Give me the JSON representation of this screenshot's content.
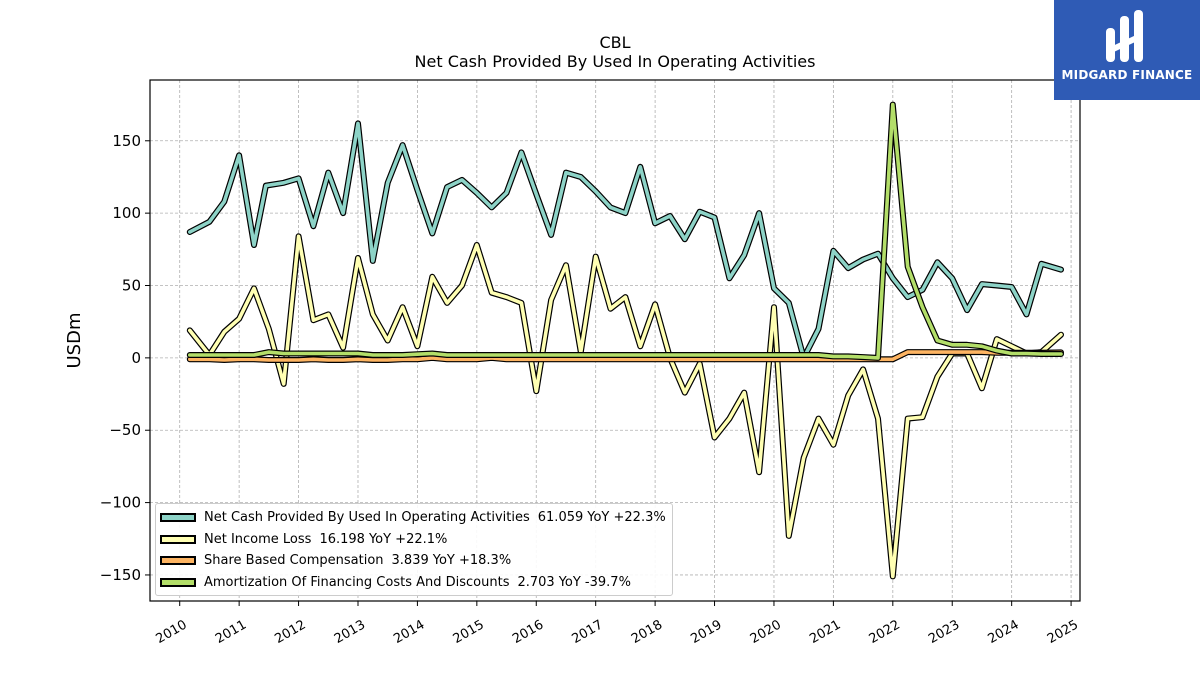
{
  "header": {
    "title": "CBL",
    "subtitle": "Net Cash Provided By Used In Operating Activities"
  },
  "logo": {
    "text": "MIDGARD FINANCE",
    "color": "#2f5bb5"
  },
  "chart_data": {
    "type": "line",
    "title": "CBL",
    "subtitle": "Net Cash Provided By Used In Operating Activities",
    "xlabel": "",
    "ylabel": "USDm",
    "xlim": [
      2009.5,
      2025.15
    ],
    "ylim": [
      -168,
      192
    ],
    "x_ticks": [
      2010,
      2011,
      2012,
      2013,
      2014,
      2015,
      2016,
      2017,
      2018,
      2019,
      2020,
      2021,
      2022,
      2023,
      2024,
      2025
    ],
    "y_ticks": [
      -150,
      -100,
      -50,
      0,
      50,
      100,
      150
    ],
    "y_tick_labels": [
      "−150",
      "−100",
      "−50",
      "0",
      "50",
      "100",
      "150"
    ],
    "grid": true,
    "legend_position": "lower-left",
    "series": [
      {
        "name": "Net Cash Provided By Used In Operating Activities",
        "value_label": "61.059",
        "yoy_label": "YoY +22.3%",
        "color": "#8dd3c7",
        "points": [
          [
            2010.17,
            87
          ],
          [
            2010.5,
            94
          ],
          [
            2010.75,
            108
          ],
          [
            2011.0,
            140
          ],
          [
            2011.25,
            78
          ],
          [
            2011.45,
            119
          ],
          [
            2011.75,
            121
          ],
          [
            2012.0,
            124
          ],
          [
            2012.25,
            91
          ],
          [
            2012.5,
            128
          ],
          [
            2012.75,
            100
          ],
          [
            2013.0,
            162
          ],
          [
            2013.25,
            67
          ],
          [
            2013.5,
            121
          ],
          [
            2013.75,
            147
          ],
          [
            2014.0,
            116
          ],
          [
            2014.25,
            86
          ],
          [
            2014.5,
            118
          ],
          [
            2014.75,
            123
          ],
          [
            2015.0,
            114
          ],
          [
            2015.25,
            104
          ],
          [
            2015.5,
            114
          ],
          [
            2015.75,
            142
          ],
          [
            2016.0,
            113
          ],
          [
            2016.25,
            85
          ],
          [
            2016.5,
            128
          ],
          [
            2016.75,
            125
          ],
          [
            2017.0,
            115
          ],
          [
            2017.25,
            104
          ],
          [
            2017.5,
            100
          ],
          [
            2017.75,
            132
          ],
          [
            2018.0,
            93
          ],
          [
            2018.25,
            98
          ],
          [
            2018.5,
            82
          ],
          [
            2018.75,
            101
          ],
          [
            2019.0,
            97
          ],
          [
            2019.25,
            55
          ],
          [
            2019.5,
            71
          ],
          [
            2019.75,
            100
          ],
          [
            2020.0,
            48
          ],
          [
            2020.25,
            38
          ],
          [
            2020.5,
            0
          ],
          [
            2020.75,
            20
          ],
          [
            2021.0,
            74
          ],
          [
            2021.25,
            62
          ],
          [
            2021.5,
            68
          ],
          [
            2021.75,
            72
          ],
          [
            2022.0,
            55
          ],
          [
            2022.25,
            42
          ],
          [
            2022.5,
            47
          ],
          [
            2022.75,
            66
          ],
          [
            2023.0,
            55
          ],
          [
            2023.25,
            33
          ],
          [
            2023.5,
            51
          ],
          [
            2023.75,
            50
          ],
          [
            2024.0,
            49
          ],
          [
            2024.25,
            30
          ],
          [
            2024.5,
            65
          ],
          [
            2024.83,
            61
          ]
        ]
      },
      {
        "name": "Net Income Loss",
        "value_label": "16.198",
        "yoy_label": "YoY +22.1%",
        "color": "#ffffb3",
        "points": [
          [
            2010.17,
            19
          ],
          [
            2010.5,
            2
          ],
          [
            2010.75,
            18
          ],
          [
            2011.0,
            27
          ],
          [
            2011.25,
            48
          ],
          [
            2011.5,
            20
          ],
          [
            2011.75,
            -18
          ],
          [
            2012.0,
            84
          ],
          [
            2012.25,
            26
          ],
          [
            2012.5,
            30
          ],
          [
            2012.75,
            7
          ],
          [
            2013.0,
            69
          ],
          [
            2013.25,
            30
          ],
          [
            2013.5,
            12
          ],
          [
            2013.75,
            35
          ],
          [
            2014.0,
            8
          ],
          [
            2014.25,
            56
          ],
          [
            2014.5,
            38
          ],
          [
            2014.75,
            50
          ],
          [
            2015.0,
            78
          ],
          [
            2015.25,
            45
          ],
          [
            2015.5,
            42
          ],
          [
            2015.75,
            38
          ],
          [
            2016.0,
            -23
          ],
          [
            2016.25,
            40
          ],
          [
            2016.5,
            64
          ],
          [
            2016.75,
            4
          ],
          [
            2017.0,
            70
          ],
          [
            2017.25,
            34
          ],
          [
            2017.5,
            42
          ],
          [
            2017.75,
            8
          ],
          [
            2018.0,
            37
          ],
          [
            2018.25,
            0
          ],
          [
            2018.5,
            -24
          ],
          [
            2018.75,
            -4
          ],
          [
            2019.0,
            -55
          ],
          [
            2019.25,
            -42
          ],
          [
            2019.5,
            -24
          ],
          [
            2019.75,
            -79
          ],
          [
            2020.0,
            35
          ],
          [
            2020.25,
            -123
          ],
          [
            2020.5,
            -69
          ],
          [
            2020.75,
            -42
          ],
          [
            2021.0,
            -60
          ],
          [
            2021.25,
            -26
          ],
          [
            2021.5,
            -8
          ],
          [
            2021.75,
            -42
          ],
          [
            2022.0,
            -151
          ],
          [
            2022.25,
            -42
          ],
          [
            2022.5,
            -41
          ],
          [
            2022.75,
            -13
          ],
          [
            2023.0,
            3
          ],
          [
            2023.25,
            3
          ],
          [
            2023.5,
            -21
          ],
          [
            2023.75,
            13
          ],
          [
            2024.0,
            8
          ],
          [
            2024.25,
            3
          ],
          [
            2024.5,
            4
          ],
          [
            2024.83,
            16
          ]
        ]
      },
      {
        "name": "Share Based Compensation",
        "value_label": "3.839",
        "yoy_label": "YoY +18.3%",
        "color": "#fdb462",
        "points": [
          [
            2010.17,
            -1
          ],
          [
            2010.5,
            -1
          ],
          [
            2010.75,
            -1.5
          ],
          [
            2011.0,
            -1
          ],
          [
            2011.25,
            -1
          ],
          [
            2011.5,
            -1.5
          ],
          [
            2011.75,
            -1.5
          ],
          [
            2012.0,
            -1.5
          ],
          [
            2012.25,
            -1
          ],
          [
            2012.5,
            -1.5
          ],
          [
            2012.75,
            -1.5
          ],
          [
            2013.0,
            -1
          ],
          [
            2013.25,
            -1.5
          ],
          [
            2013.5,
            -1.5
          ],
          [
            2013.75,
            -1
          ],
          [
            2014.0,
            -1
          ],
          [
            2014.25,
            0
          ],
          [
            2014.5,
            -1
          ],
          [
            2014.75,
            -1
          ],
          [
            2015.0,
            -1
          ],
          [
            2015.25,
            0
          ],
          [
            2015.5,
            -1
          ],
          [
            2015.75,
            -1
          ],
          [
            2016.0,
            -1
          ],
          [
            2016.25,
            -1
          ],
          [
            2016.5,
            -1
          ],
          [
            2016.75,
            -1
          ],
          [
            2017.0,
            -1
          ],
          [
            2017.25,
            -1
          ],
          [
            2017.5,
            -1
          ],
          [
            2017.75,
            -1
          ],
          [
            2018.0,
            -1
          ],
          [
            2018.25,
            -1
          ],
          [
            2018.5,
            -1
          ],
          [
            2018.75,
            -1
          ],
          [
            2019.0,
            -1
          ],
          [
            2019.25,
            -1
          ],
          [
            2019.5,
            -1
          ],
          [
            2019.75,
            -1
          ],
          [
            2020.0,
            -1
          ],
          [
            2020.25,
            -1
          ],
          [
            2020.5,
            -1
          ],
          [
            2020.75,
            -1
          ],
          [
            2021.0,
            -1
          ],
          [
            2021.25,
            -1
          ],
          [
            2021.5,
            -1
          ],
          [
            2021.75,
            -1
          ],
          [
            2022.0,
            -1
          ],
          [
            2022.25,
            4
          ],
          [
            2022.5,
            4
          ],
          [
            2022.75,
            4
          ],
          [
            2023.0,
            4
          ],
          [
            2023.25,
            4
          ],
          [
            2023.5,
            4
          ],
          [
            2023.75,
            3.5
          ],
          [
            2024.0,
            3.5
          ],
          [
            2024.25,
            3.5
          ],
          [
            2024.5,
            3.5
          ],
          [
            2024.83,
            3.8
          ]
        ]
      },
      {
        "name": "Amortization Of Financing Costs And Discounts",
        "value_label": "2.703",
        "yoy_label": "YoY -39.7%",
        "color": "#b3de69",
        "points": [
          [
            2010.17,
            2
          ],
          [
            2010.5,
            2
          ],
          [
            2010.75,
            2
          ],
          [
            2011.0,
            2
          ],
          [
            2011.25,
            2
          ],
          [
            2011.5,
            4
          ],
          [
            2011.75,
            3
          ],
          [
            2012.0,
            3
          ],
          [
            2012.25,
            3
          ],
          [
            2012.5,
            3
          ],
          [
            2012.75,
            3
          ],
          [
            2013.0,
            3
          ],
          [
            2013.25,
            2
          ],
          [
            2013.5,
            2
          ],
          [
            2013.75,
            2
          ],
          [
            2014.0,
            2.5
          ],
          [
            2014.25,
            3
          ],
          [
            2014.5,
            2
          ],
          [
            2014.75,
            2
          ],
          [
            2015.0,
            2
          ],
          [
            2015.25,
            2
          ],
          [
            2015.5,
            2
          ],
          [
            2015.75,
            2
          ],
          [
            2016.0,
            2
          ],
          [
            2016.25,
            2
          ],
          [
            2016.5,
            2
          ],
          [
            2016.75,
            2
          ],
          [
            2017.0,
            2
          ],
          [
            2017.25,
            2
          ],
          [
            2017.5,
            2
          ],
          [
            2017.75,
            2
          ],
          [
            2018.0,
            2
          ],
          [
            2018.25,
            2
          ],
          [
            2018.5,
            2
          ],
          [
            2018.75,
            2
          ],
          [
            2019.0,
            2
          ],
          [
            2019.25,
            2
          ],
          [
            2019.5,
            2
          ],
          [
            2019.75,
            2
          ],
          [
            2020.0,
            2
          ],
          [
            2020.25,
            2
          ],
          [
            2020.5,
            2
          ],
          [
            2020.75,
            2
          ],
          [
            2021.0,
            1
          ],
          [
            2021.25,
            1
          ],
          [
            2021.5,
            0.5
          ],
          [
            2021.75,
            0
          ],
          [
            2022.0,
            175
          ],
          [
            2022.25,
            63
          ],
          [
            2022.5,
            35
          ],
          [
            2022.75,
            12
          ],
          [
            2023.0,
            9
          ],
          [
            2023.25,
            9
          ],
          [
            2023.5,
            8
          ],
          [
            2023.75,
            5
          ],
          [
            2024.0,
            3
          ],
          [
            2024.25,
            3
          ],
          [
            2024.5,
            2.7
          ],
          [
            2024.83,
            2.7
          ]
        ]
      }
    ]
  }
}
